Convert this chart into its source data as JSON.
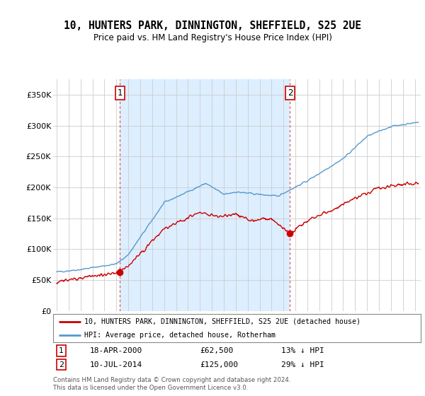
{
  "title": "10, HUNTERS PARK, DINNINGTON, SHEFFIELD, S25 2UE",
  "subtitle": "Price paid vs. HM Land Registry's House Price Index (HPI)",
  "ylabel_ticks": [
    "£0",
    "£50K",
    "£100K",
    "£150K",
    "£200K",
    "£250K",
    "£300K",
    "£350K"
  ],
  "ytick_values": [
    0,
    50000,
    100000,
    150000,
    200000,
    250000,
    300000,
    350000
  ],
  "ylim": [
    0,
    375000
  ],
  "xlim_start": 1994.7,
  "xlim_end": 2025.5,
  "hpi_color": "#5599cc",
  "price_color": "#cc0000",
  "vline_color": "#dd4444",
  "shade_color": "#ddeeff",
  "marker1_x": 2000.3,
  "marker1_y": 62500,
  "marker1_label": "1",
  "marker2_x": 2014.55,
  "marker2_y": 125000,
  "marker2_label": "2",
  "legend_line1": "10, HUNTERS PARK, DINNINGTON, SHEFFIELD, S25 2UE (detached house)",
  "legend_line2": "HPI: Average price, detached house, Rotherham",
  "annot1_num": "1",
  "annot1_date": "18-APR-2000",
  "annot1_price": "£62,500",
  "annot1_hpi": "13% ↓ HPI",
  "annot2_num": "2",
  "annot2_date": "10-JUL-2014",
  "annot2_price": "£125,000",
  "annot2_hpi": "29% ↓ HPI",
  "footer": "Contains HM Land Registry data © Crown copyright and database right 2024.\nThis data is licensed under the Open Government Licence v3.0.",
  "background_color": "#ffffff",
  "plot_bg_color": "#ffffff"
}
